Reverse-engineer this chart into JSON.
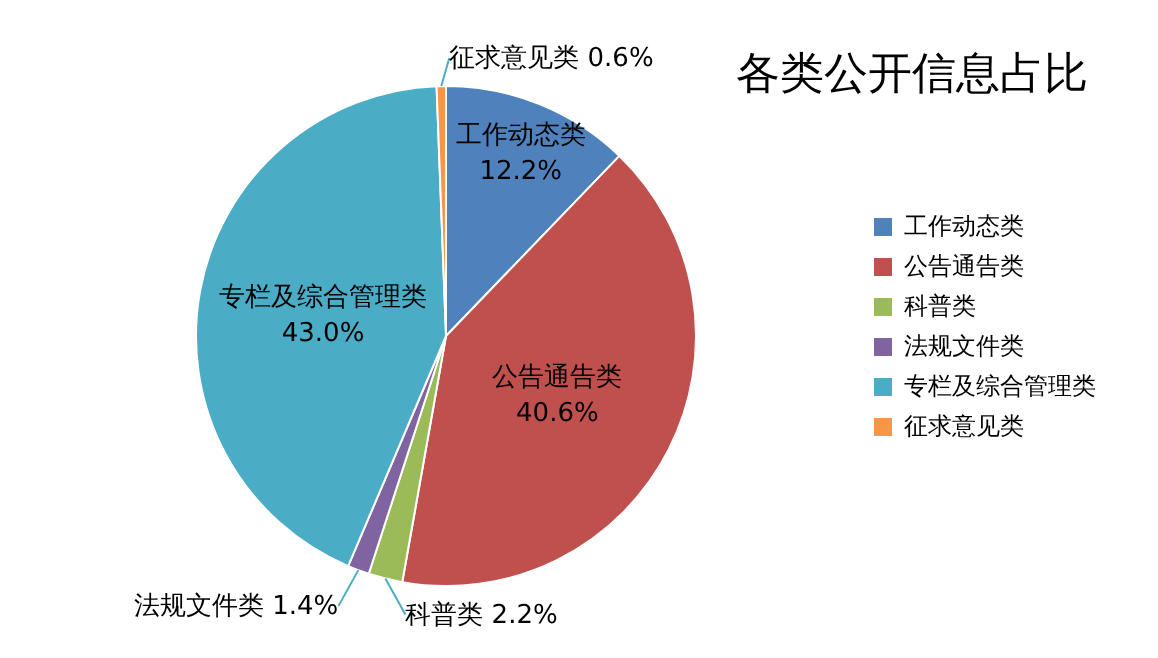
{
  "chart_data": {
    "type": "pie",
    "title": "各类公开信息占比",
    "categories": [
      "工作动态类",
      "公告通告类",
      "科普类",
      "法规文件类",
      "专栏及综合管理类",
      "征求意见类"
    ],
    "values": [
      12.2,
      40.6,
      2.2,
      1.4,
      43.0,
      0.6
    ],
    "value_labels": [
      "12.2%",
      "40.6%",
      "2.2%",
      "1.4%",
      "43.0%",
      "0.6%"
    ],
    "colors": [
      "#4f81bd",
      "#c0504d",
      "#9bbb59",
      "#8064a2",
      "#4bacc6",
      "#f79646"
    ],
    "legend": "right"
  }
}
